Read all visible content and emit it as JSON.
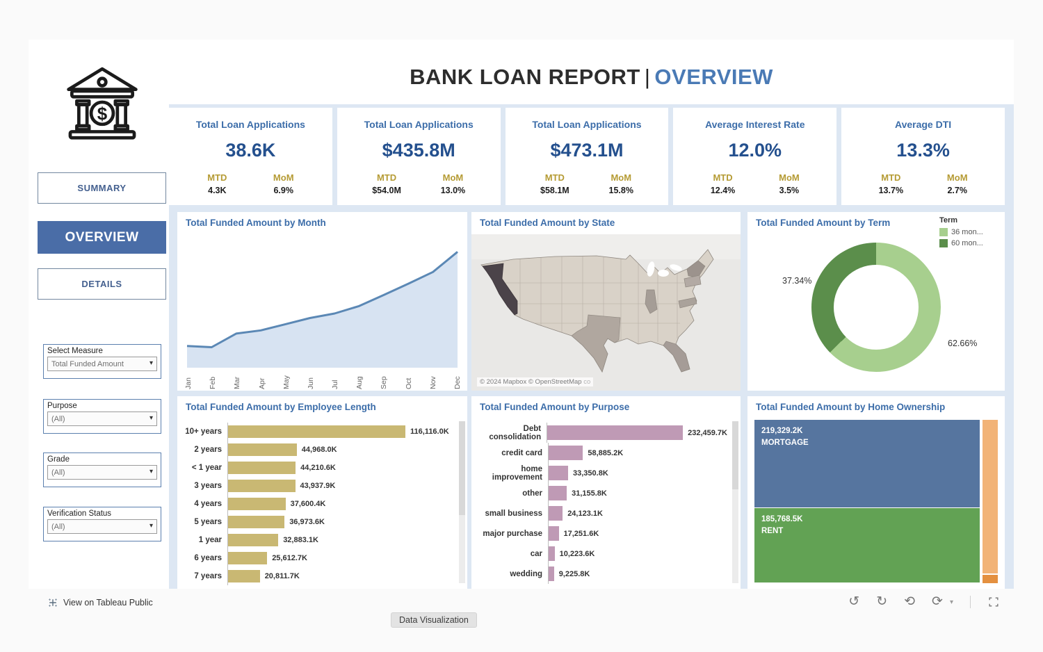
{
  "header": {
    "title_main": "BANK LOAN REPORT",
    "title_sep": "|",
    "title_accent": "OVERVIEW",
    "logo": "bank-icon"
  },
  "sidebar": {
    "nav": [
      {
        "label": "SUMMARY",
        "active": false
      },
      {
        "label": "OVERVIEW",
        "active": true
      },
      {
        "label": "DETAILS",
        "active": false
      }
    ],
    "filters": [
      {
        "label": "Select Measure",
        "value": "Total Funded Amount"
      },
      {
        "label": "Purpose",
        "value": "(All)"
      },
      {
        "label": "Grade",
        "value": "(All)"
      },
      {
        "label": "Verification Status",
        "value": "(All)"
      }
    ]
  },
  "kpis": [
    {
      "title": "Total Loan Applications",
      "value": "38.6K",
      "mtd_label": "MTD",
      "mtd": "4.3K",
      "mom_label": "MoM",
      "mom": "6.9%"
    },
    {
      "title": "Total Loan Applications",
      "value": "$435.8M",
      "mtd_label": "MTD",
      "mtd": "$54.0M",
      "mom_label": "MoM",
      "mom": "13.0%"
    },
    {
      "title": "Total Loan Applications",
      "value": "$473.1M",
      "mtd_label": "MTD",
      "mtd": "$58.1M",
      "mom_label": "MoM",
      "mom": "15.8%"
    },
    {
      "title": "Average Interest Rate",
      "value": "12.0%",
      "mtd_label": "MTD",
      "mtd": "12.4%",
      "mom_label": "MoM",
      "mom": "3.5%"
    },
    {
      "title": "Average DTI",
      "value": "13.3%",
      "mtd_label": "MTD",
      "mtd": "13.7%",
      "mom_label": "MoM",
      "mom": "2.7%"
    }
  ],
  "chart_data": [
    {
      "type": "area",
      "title": "Total Funded Amount by Month",
      "x": [
        "Jan",
        "Feb",
        "Mar",
        "Apr",
        "May",
        "Jun",
        "Jul",
        "Aug",
        "Sep",
        "Oct",
        "Nov",
        "Dec"
      ],
      "values_musd": [
        25.0,
        24.6,
        28.8,
        29.8,
        31.7,
        33.6,
        35.0,
        37.3,
        40.7,
        44.2,
        47.8,
        54.0
      ],
      "ylim_draw": [
        20,
        56
      ],
      "note": "monthly values estimated from curve; axis unlabeled"
    },
    {
      "type": "map",
      "title": "Total Funded Amount by State",
      "region": "United States",
      "shading": "gray sequential choropleth",
      "darkest_state": "California",
      "darker_states": [
        "Texas",
        "New York",
        "Illinois",
        "Florida",
        "Pennsylvania",
        "Virginia"
      ],
      "attribution": "© 2024 Mapbox © OpenStreetMap",
      "attribution_tail": "co"
    },
    {
      "type": "pie",
      "title": "Total Funded Amount by Term",
      "legend_title": "Term",
      "categories": [
        "36 mon...",
        "60 mon..."
      ],
      "values_pct": [
        62.66,
        37.34
      ],
      "labels": [
        "62.66%",
        "37.34%"
      ],
      "legend_position": "top-right"
    },
    {
      "type": "bar",
      "title": "Total Funded Amount by Employee Length",
      "categories": [
        "10+ years",
        "2 years",
        "< 1 year",
        "3 years",
        "4 years",
        "5 years",
        "1 year",
        "6 years",
        "7 years"
      ],
      "values_k": [
        116116.0,
        44968.0,
        44210.6,
        43937.9,
        37600.4,
        36973.6,
        32883.1,
        25612.7,
        20811.7
      ],
      "labels": [
        "116,116.0K",
        "44,968.0K",
        "44,210.6K",
        "43,937.9K",
        "37,600.4K",
        "36,973.6K",
        "32,883.1K",
        "25,612.7K",
        "20,811.7K"
      ],
      "orientation": "horizontal"
    },
    {
      "type": "bar",
      "title": "Total Funded Amount by Purpose",
      "categories": [
        "Debt consolidation",
        "credit card",
        "home improvement",
        "other",
        "small business",
        "major purchase",
        "car",
        "wedding"
      ],
      "values_k": [
        232459.7,
        58885.2,
        33350.8,
        31155.8,
        24123.1,
        17251.6,
        10223.6,
        9225.8
      ],
      "labels": [
        "232,459.7K",
        "58,885.2K",
        "33,350.8K",
        "31,155.8K",
        "24,123.1K",
        "17,251.6K",
        "10,223.6K",
        "9,225.8K"
      ],
      "orientation": "horizontal"
    },
    {
      "type": "treemap",
      "title": "Total Funded Amount by Home Ownership",
      "items": [
        {
          "label": "MORTGAGE",
          "value_label": "219,329.2K",
          "value_k": 219329.2,
          "color": "#56759f"
        },
        {
          "label": "RENT",
          "value_label": "185,768.5K",
          "value_k": 185768.5,
          "color": "#62a254"
        },
        {
          "label": "",
          "value_label": "",
          "color": "#f2b377"
        },
        {
          "label": "",
          "value_label": "",
          "color": "#e49040"
        }
      ]
    }
  ],
  "footer": {
    "view_link": "View on Tableau Public",
    "tab": "Data Visualization"
  },
  "colors": {
    "accent_blue": "#3c6da9",
    "kpi_value": "#24508e",
    "gold": "#b59b34",
    "area_fill": "#d7e3f2",
    "area_line": "#5b88b5",
    "donut_light": "#a7cf8e",
    "donut_dark": "#5b8e4b",
    "bar_khaki": "#c9b873",
    "bar_mauve": "#bf9ab5",
    "tm_blue": "#56759f",
    "tm_green": "#62a254",
    "tm_orange": "#f2b377",
    "tm_orange_dark": "#e49040",
    "map_base": "#d9d2c8",
    "map_dark": "#4b4349",
    "map_mid": "#b0a79f",
    "nav_active": "#4a6da7"
  }
}
